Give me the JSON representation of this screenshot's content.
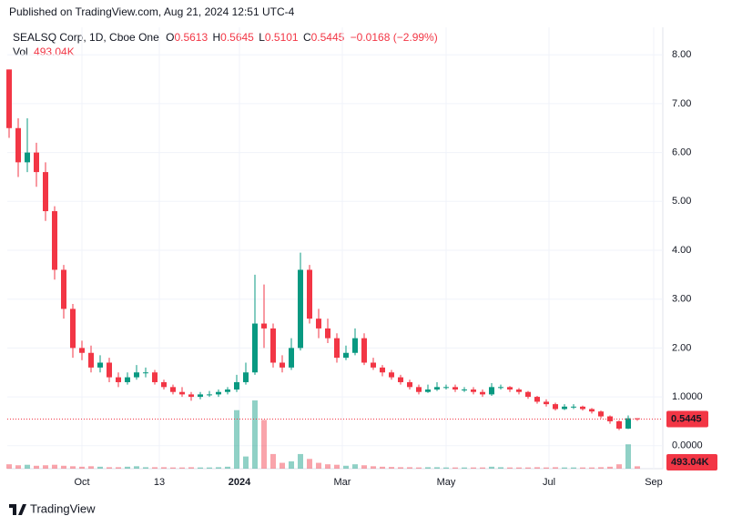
{
  "chart_data": {
    "type": "candlestick",
    "published": "Published on TradingView.com, Aug 21, 2024 12:51 UTC-4",
    "title": "SEALSQ Corp, 1D, Cboe One",
    "legend_labels": {
      "open": "O",
      "high": "H",
      "low": "L",
      "close": "C",
      "volume": "Vol"
    },
    "change_label": "−0.0168 (−2.99%)",
    "last_volume_label": "493.04K",
    "brand": "TradingView",
    "up_color": "#089981",
    "down_color": "#f23645",
    "grid": true,
    "ylim": [
      -0.47,
      8.47
    ],
    "yticks": [
      {
        "value": 0,
        "label": "0.0000"
      },
      {
        "value": 1,
        "label": "1.0000"
      },
      {
        "value": 2,
        "label": "2.00"
      },
      {
        "value": 3,
        "label": "3.00"
      },
      {
        "value": 4,
        "label": "4.00"
      },
      {
        "value": 5,
        "label": "5.00"
      },
      {
        "value": 6,
        "label": "6.00"
      },
      {
        "value": 7,
        "label": "7.00"
      },
      {
        "value": 8,
        "label": "8.00"
      }
    ],
    "xlim": [
      -0.2,
      71.8
    ],
    "xticks": [
      {
        "value": 8,
        "label": "Oct"
      },
      {
        "value": 16.5,
        "label": "13"
      },
      {
        "value": 25.3,
        "label": "2024"
      },
      {
        "value": 36.6,
        "label": "Mar"
      },
      {
        "value": 48,
        "label": "May"
      },
      {
        "value": 59.3,
        "label": "Jul"
      },
      {
        "value": 70.8,
        "label": "Sep"
      }
    ],
    "open": [
      7.7,
      6.5,
      5.8,
      6.0,
      5.6,
      4.8,
      3.6,
      2.8,
      2.0,
      1.9,
      1.6,
      1.7,
      1.4,
      1.3,
      1.4,
      1.5,
      1.5,
      1.3,
      1.2,
      1.1,
      1.05,
      1.0,
      1.05,
      1.05,
      1.1,
      1.15,
      1.3,
      1.5,
      2.5,
      2.4,
      1.7,
      1.6,
      2.0,
      3.6,
      2.6,
      2.4,
      2.2,
      1.8,
      1.9,
      2.2,
      1.7,
      1.6,
      1.5,
      1.4,
      1.3,
      1.2,
      1.1,
      1.15,
      1.2,
      1.2,
      1.15,
      1.15,
      1.1,
      1.05,
      1.2,
      1.2,
      1.15,
      1.1,
      1.0,
      0.9,
      0.85,
      0.75,
      0.8,
      0.8,
      0.75,
      0.7,
      0.6,
      0.5,
      0.35,
      0.5613
    ],
    "high": [
      7.7,
      6.7,
      6.7,
      6.2,
      5.8,
      4.9,
      3.7,
      2.9,
      2.15,
      2.05,
      1.85,
      1.8,
      1.5,
      1.5,
      1.65,
      1.6,
      1.55,
      1.35,
      1.25,
      1.2,
      1.1,
      1.1,
      1.12,
      1.15,
      1.2,
      1.45,
      1.7,
      3.5,
      3.3,
      2.5,
      1.85,
      2.2,
      3.95,
      3.7,
      2.8,
      2.6,
      2.3,
      2.05,
      2.4,
      2.3,
      1.8,
      1.65,
      1.55,
      1.45,
      1.35,
      1.25,
      1.25,
      1.3,
      1.25,
      1.25,
      1.2,
      1.2,
      1.15,
      1.28,
      1.25,
      1.22,
      1.18,
      1.12,
      1.02,
      0.95,
      0.88,
      0.85,
      0.85,
      0.82,
      0.77,
      0.72,
      0.62,
      0.52,
      0.62,
      0.5645
    ],
    "low": [
      6.3,
      5.5,
      5.6,
      5.3,
      4.6,
      3.4,
      2.6,
      1.8,
      1.75,
      1.5,
      1.5,
      1.3,
      1.2,
      1.25,
      1.35,
      1.4,
      1.25,
      1.15,
      1.05,
      1.0,
      0.92,
      0.95,
      1.0,
      1.0,
      1.05,
      1.1,
      1.25,
      1.45,
      2.0,
      1.6,
      1.5,
      1.55,
      1.95,
      2.5,
      2.2,
      2.1,
      1.7,
      1.75,
      1.85,
      1.65,
      1.55,
      1.42,
      1.35,
      1.25,
      1.15,
      1.05,
      1.08,
      1.12,
      1.15,
      1.1,
      1.1,
      1.05,
      1.0,
      1.02,
      1.15,
      1.1,
      1.05,
      0.96,
      0.86,
      0.8,
      0.72,
      0.73,
      0.75,
      0.72,
      0.66,
      0.56,
      0.45,
      0.32,
      0.34,
      0.5101
    ],
    "close": [
      6.5,
      5.8,
      6.0,
      5.6,
      4.8,
      3.6,
      2.8,
      2.0,
      1.9,
      1.6,
      1.7,
      1.4,
      1.3,
      1.4,
      1.5,
      1.5,
      1.3,
      1.2,
      1.1,
      1.05,
      1.0,
      1.05,
      1.05,
      1.1,
      1.15,
      1.3,
      1.5,
      2.5,
      2.4,
      1.7,
      1.6,
      2.0,
      3.6,
      2.6,
      2.4,
      2.2,
      1.8,
      1.9,
      2.2,
      1.7,
      1.6,
      1.5,
      1.4,
      1.3,
      1.2,
      1.1,
      1.15,
      1.2,
      1.2,
      1.15,
      1.15,
      1.1,
      1.05,
      1.2,
      1.2,
      1.15,
      1.1,
      1.0,
      0.9,
      0.85,
      0.75,
      0.8,
      0.8,
      0.75,
      0.7,
      0.6,
      0.5,
      0.35,
      0.5613,
      0.5445
    ],
    "volume": [
      900000,
      700000,
      800000,
      600000,
      700000,
      800000,
      600000,
      500000,
      400000,
      500000,
      400000,
      300000,
      300000,
      400000,
      500000,
      300000,
      300000,
      300000,
      250000,
      250000,
      300000,
      250000,
      250000,
      300000,
      400000,
      12000000,
      2500000,
      14000000,
      10000000,
      3000000,
      1200000,
      1500000,
      3000000,
      2000000,
      1200000,
      900000,
      800000,
      600000,
      900000,
      700000,
      500000,
      400000,
      350000,
      300000,
      300000,
      250000,
      300000,
      300000,
      250000,
      250000,
      250000,
      250000,
      250000,
      400000,
      300000,
      250000,
      250000,
      250000,
      300000,
      250000,
      300000,
      250000,
      250000,
      250000,
      250000,
      300000,
      400000,
      900000,
      5000000,
      493040
    ]
  }
}
